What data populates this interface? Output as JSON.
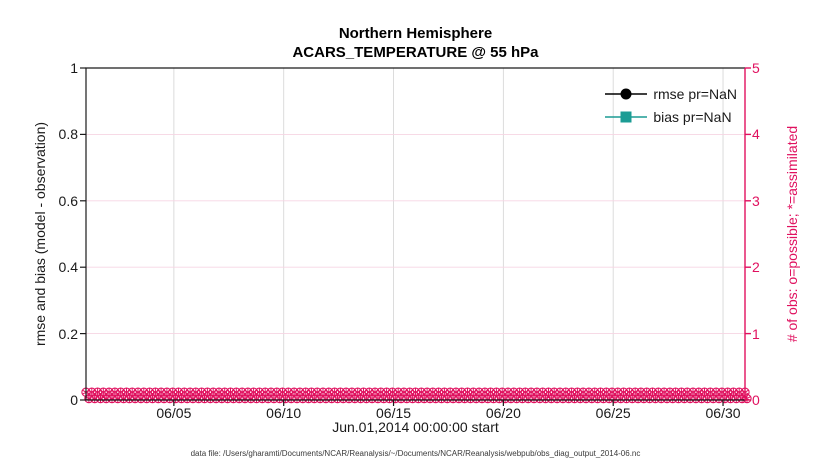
{
  "figure": {
    "title_line1": "Northern Hemisphere",
    "title_line2": "ACARS_TEMPERATURE @ 55 hPa",
    "xlabel": "Jun.01,2014 00:00:00 start",
    "ylabel_left": "rmse and bias (model - observation)",
    "ylabel_right": "# of obs: o=possible; *=assimilated",
    "caption": "data file: /Users/gharamti/Documents/NCAR/Reanalysis/~/Documents/NCAR/Reanalysis/webpub/obs_diag_output_2014-06.nc"
  },
  "legend": {
    "items": [
      {
        "label": "rmse pr=NaN",
        "color": "#000000",
        "marker": "circle"
      },
      {
        "label": "bias pr=NaN",
        "color": "#1b9c94",
        "marker": "square"
      }
    ]
  },
  "colors": {
    "axis_dark": "#1a1a1a",
    "axis_pink": "#e0115f",
    "grid_gray": "#d8d8d8",
    "grid_pink": "#f6d5e3",
    "teal": "#1b9c94"
  },
  "chart_data": {
    "type": "line",
    "title": "Northern Hemisphere",
    "subtitle": "ACARS_TEMPERATURE @ 55 hPa",
    "xlabel": "Jun.01,2014 00:00:00 start",
    "grid": true,
    "legend_position": "top-right-inside",
    "x_axis": {
      "range_days": [
        0,
        30
      ],
      "tick_days": [
        4,
        9,
        14,
        19,
        24,
        29
      ],
      "tick_labels": [
        "06/05",
        "06/10",
        "06/15",
        "06/20",
        "06/25",
        "06/30"
      ]
    },
    "y_axis_left": {
      "label": "rmse and bias (model - observation)",
      "range": [
        0,
        1
      ],
      "tick_values": [
        0,
        0.2,
        0.4,
        0.6,
        0.8,
        1
      ],
      "tick_labels": [
        "0",
        "0.2",
        "0.4",
        "0.6",
        "0.8",
        "1"
      ],
      "color": "#1a1a1a"
    },
    "y_axis_right": {
      "label": "# of obs: o=possible; *=assimilated",
      "range": [
        0,
        5
      ],
      "tick_values": [
        0,
        1,
        2,
        3,
        4,
        5
      ],
      "tick_labels": [
        "0",
        "1",
        "2",
        "3",
        "4",
        "5"
      ],
      "color": "#e0115f"
    },
    "series": [
      {
        "name": "rmse pr=NaN",
        "color": "#000000",
        "marker": "circle",
        "values": "NaN"
      },
      {
        "name": "bias pr=NaN",
        "color": "#1b9c94",
        "marker": "square",
        "values": "NaN"
      }
    ],
    "obs_markers": {
      "description": "o=possible and *=assimilated observation counts, all plotted at 0 on the right axis at every assimilation time through June 2014",
      "value_right_axis": 0,
      "marker_count_per_row": 115,
      "color": "#e0115f"
    }
  }
}
